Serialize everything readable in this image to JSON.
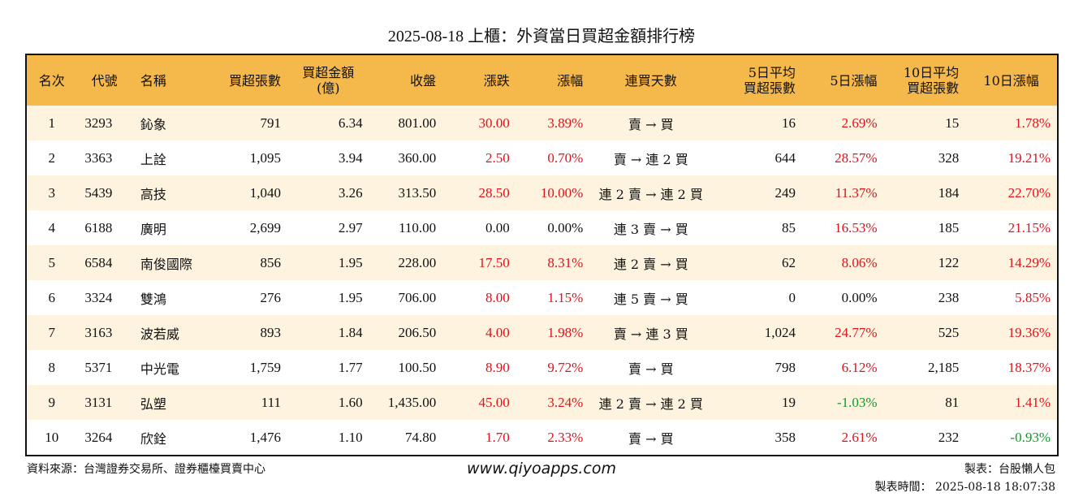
{
  "title": "2025-08-18 上櫃：外資當日買超金額排行榜",
  "headers": [
    "名次",
    "代號",
    "名稱",
    "買超張數",
    "買超金額\n(億)",
    "收盤",
    "漲跌",
    "漲幅",
    "連買天數",
    "5日平均\n買超張數",
    "5日漲幅",
    "10日平均\n買超張數",
    "10日漲幅"
  ],
  "rows": [
    [
      "1",
      "3293",
      "鈊象",
      "791",
      "6.34",
      "801.00",
      "30.00",
      "3.89%",
      "賣 → 買",
      "16",
      "2.69%",
      "15",
      "1.78%"
    ],
    [
      "2",
      "3363",
      "上詮",
      "1,095",
      "3.94",
      "360.00",
      "2.50",
      "0.70%",
      "賣 → 連 2 買",
      "644",
      "28.57%",
      "328",
      "19.21%"
    ],
    [
      "3",
      "5439",
      "高技",
      "1,040",
      "3.26",
      "313.50",
      "28.50",
      "10.00%",
      "連 2 賣 → 連 2 買",
      "249",
      "11.37%",
      "184",
      "22.70%"
    ],
    [
      "4",
      "6188",
      "廣明",
      "2,699",
      "2.97",
      "110.00",
      "0.00",
      "0.00%",
      "連 3 賣 → 買",
      "85",
      "16.53%",
      "185",
      "21.15%"
    ],
    [
      "5",
      "6584",
      "南俊國際",
      "856",
      "1.95",
      "228.00",
      "17.50",
      "8.31%",
      "連 2 賣 → 買",
      "62",
      "8.06%",
      "122",
      "14.29%"
    ],
    [
      "6",
      "3324",
      "雙鴻",
      "276",
      "1.95",
      "706.00",
      "8.00",
      "1.15%",
      "連 5 賣 → 買",
      "0",
      "0.00%",
      "238",
      "5.85%"
    ],
    [
      "7",
      "3163",
      "波若威",
      "893",
      "1.84",
      "206.50",
      "4.00",
      "1.98%",
      "賣 → 連 3 買",
      "1,024",
      "24.77%",
      "525",
      "19.36%"
    ],
    [
      "8",
      "5371",
      "中光電",
      "1,759",
      "1.77",
      "100.50",
      "8.90",
      "9.72%",
      "賣 → 買",
      "798",
      "6.12%",
      "2,185",
      "18.37%"
    ],
    [
      "9",
      "3131",
      "弘塑",
      "111",
      "1.60",
      "1,435.00",
      "45.00",
      "3.24%",
      "連 2 賣 → 連 2 買",
      "19",
      "-1.03%",
      "81",
      "1.41%"
    ],
    [
      "10",
      "3264",
      "欣銓",
      "1,476",
      "1.10",
      "74.80",
      "1.70",
      "2.33%",
      "賣 → 買",
      "358",
      "2.61%",
      "232",
      "-0.93%"
    ]
  ],
  "footer": {
    "source": "資料來源：台灣證券交易所、證券櫃檯買賣中心",
    "website": "www.qiyoapps.com",
    "author": "製表：台股懶人包",
    "generated": "製表時間： 2025-08-18 18:07:38"
  },
  "colors": {
    "header_bg": "#f5b84a",
    "odd_row_bg": "#fdf3df",
    "up": "#e0121b",
    "down": "#119a2a"
  }
}
